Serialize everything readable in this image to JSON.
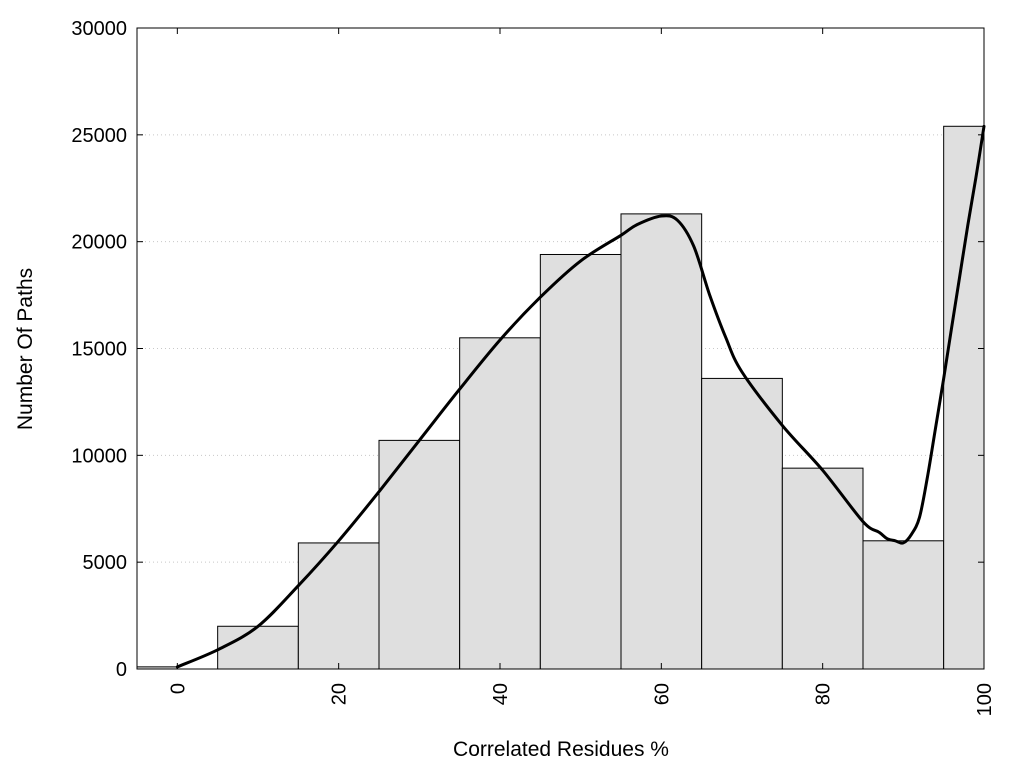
{
  "chart_data": {
    "type": "bar",
    "xlabel": "Correlated Residues %",
    "ylabel": "Number Of Paths",
    "xlim": [
      -5,
      100
    ],
    "ylim": [
      0,
      30000
    ],
    "grid": true,
    "x_ticks": [
      "0",
      "20",
      "40",
      "60",
      "80",
      "100"
    ],
    "y_ticks": [
      "0",
      "5000",
      "10000",
      "15000",
      "20000",
      "25000",
      "30000"
    ],
    "bars": [
      {
        "x_start": -5,
        "x_end": 0,
        "value": 100
      },
      {
        "x_start": 5,
        "x_end": 15,
        "value": 2000
      },
      {
        "x_start": 15,
        "x_end": 25,
        "value": 5900
      },
      {
        "x_start": 25,
        "x_end": 35,
        "value": 10700
      },
      {
        "x_start": 35,
        "x_end": 45,
        "value": 15500
      },
      {
        "x_start": 45,
        "x_end": 55,
        "value": 19400
      },
      {
        "x_start": 55,
        "x_end": 65,
        "value": 21300
      },
      {
        "x_start": 65,
        "x_end": 75,
        "value": 13600
      },
      {
        "x_start": 75,
        "x_end": 85,
        "value": 9400
      },
      {
        "x_start": 85,
        "x_end": 95,
        "value": 6000
      },
      {
        "x_start": 95,
        "x_end": 100,
        "value": 25400
      }
    ],
    "curve": {
      "x": [
        0,
        5,
        10,
        15,
        20,
        25,
        30,
        35,
        40,
        45,
        50,
        55,
        57,
        60,
        62,
        64,
        66,
        68,
        70,
        75,
        80,
        85,
        87,
        88,
        89,
        90,
        91,
        92,
        93,
        94,
        95,
        96,
        97,
        98,
        99,
        100
      ],
      "y": [
        100,
        900,
        2000,
        3900,
        6000,
        8300,
        10700,
        13100,
        15400,
        17400,
        19100,
        20300,
        20800,
        21200,
        21000,
        19800,
        17500,
        15500,
        13900,
        11400,
        9300,
        6900,
        6400,
        6100,
        6000,
        5900,
        6300,
        7100,
        9000,
        11300,
        13600,
        16000,
        18400,
        20800,
        23000,
        25400
      ]
    }
  }
}
